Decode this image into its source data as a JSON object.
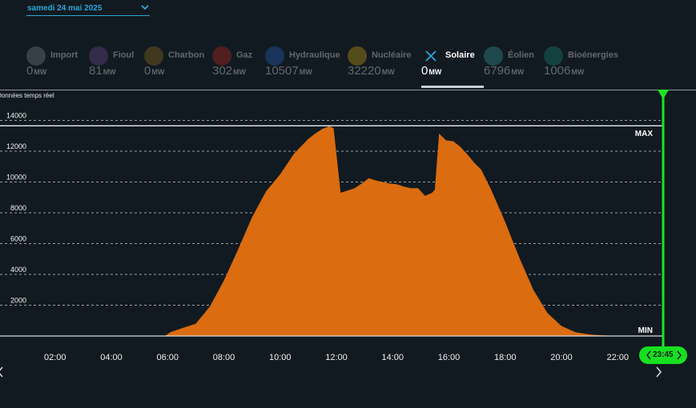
{
  "date": "samedi 24 mai 2025",
  "realtime_label": "Données temps réel",
  "tabs": [
    {
      "name": "Import",
      "value": "0",
      "unit": "MW",
      "icon": "import-icon",
      "color": "#8a8f92",
      "active": false
    },
    {
      "name": "Fioul",
      "value": "81",
      "unit": "MW",
      "icon": "fuel-oil-icon",
      "color": "#7b4fa8",
      "active": false
    },
    {
      "name": "Charbon",
      "value": "0",
      "unit": "MW",
      "icon": "coal-icon",
      "color": "#a0781e",
      "active": false
    },
    {
      "name": "Gaz",
      "value": "302",
      "unit": "MW",
      "icon": "gas-flame-icon",
      "color": "#d62424",
      "active": false
    },
    {
      "name": "Hydraulique",
      "value": "10507",
      "unit": "MW",
      "icon": "water-drop-icon",
      "color": "#2a6bd0",
      "active": false
    },
    {
      "name": "Nucléaire",
      "value": "32220",
      "unit": "MW",
      "icon": "nuclear-icon",
      "color": "#e0b316",
      "active": false
    },
    {
      "name": "Solaire",
      "value": "0",
      "unit": "MW",
      "icon": "close-icon",
      "color": "#2aa8d8",
      "active": true
    },
    {
      "name": "Éolien",
      "value": "6796",
      "unit": "MW",
      "icon": "wind-turbine-icon",
      "color": "#3aa6a8",
      "active": false
    },
    {
      "name": "Bioénergies",
      "value": "1006",
      "unit": "MW",
      "icon": "leaf-icon",
      "color": "#1f8f82",
      "active": false
    }
  ],
  "current_time": "23:45",
  "colors": {
    "area": "#db6c10",
    "cursor": "#1ee321",
    "accent": "#2aa8d8",
    "background": "#111a20"
  },
  "chart_data": {
    "type": "area",
    "title": "",
    "xlabel": "",
    "ylabel": "",
    "xlim": [
      0,
      24
    ],
    "ylim": [
      0,
      14500
    ],
    "yticks": [
      2000,
      4000,
      6000,
      8000,
      10000,
      12000,
      14000
    ],
    "ytick_labels": [
      "2000",
      "4000",
      "6000",
      "8000",
      "10000",
      "12000",
      "14000"
    ],
    "xticks": [
      2,
      4,
      6,
      8,
      10,
      12,
      14,
      16,
      18,
      20,
      22
    ],
    "xtick_labels": [
      "02:00",
      "04:00",
      "06:00",
      "08:00",
      "10:00",
      "12:00",
      "14:00",
      "16:00",
      "18:00",
      "20:00",
      "22:00"
    ],
    "grid": true,
    "reference_lines": [
      {
        "label": "MAX",
        "value": 13650
      },
      {
        "label": "MIN",
        "value": 0
      }
    ],
    "series": [
      {
        "x": [
          0,
          5.9,
          6.1,
          6.5,
          7.0,
          7.5,
          8.0,
          8.5,
          9.0,
          9.5,
          10.0,
          10.5,
          11.0,
          11.25,
          11.5,
          11.75,
          11.9,
          12.15,
          12.4,
          12.65,
          12.9,
          13.15,
          13.4,
          13.65,
          13.9,
          14.15,
          14.4,
          14.65,
          14.9,
          15.15,
          15.4,
          15.5,
          15.65,
          15.9,
          16.15,
          16.4,
          16.65,
          16.9,
          17.15,
          17.5,
          18.0,
          18.5,
          19.0,
          19.5,
          20.0,
          20.5,
          21.0,
          21.5,
          22.0,
          22.2,
          22.4,
          24
        ],
        "y": [
          0,
          0,
          250,
          500,
          800,
          1900,
          3600,
          5600,
          7700,
          9400,
          10500,
          11850,
          12800,
          13150,
          13450,
          13620,
          13500,
          9300,
          9450,
          9600,
          9900,
          10250,
          10100,
          10000,
          9900,
          9850,
          9700,
          9600,
          9600,
          9100,
          9300,
          9500,
          13150,
          12700,
          12650,
          12300,
          11800,
          11250,
          10800,
          9500,
          7400,
          5100,
          3000,
          1500,
          650,
          250,
          100,
          40,
          10,
          0,
          0,
          0
        ]
      }
    ]
  }
}
